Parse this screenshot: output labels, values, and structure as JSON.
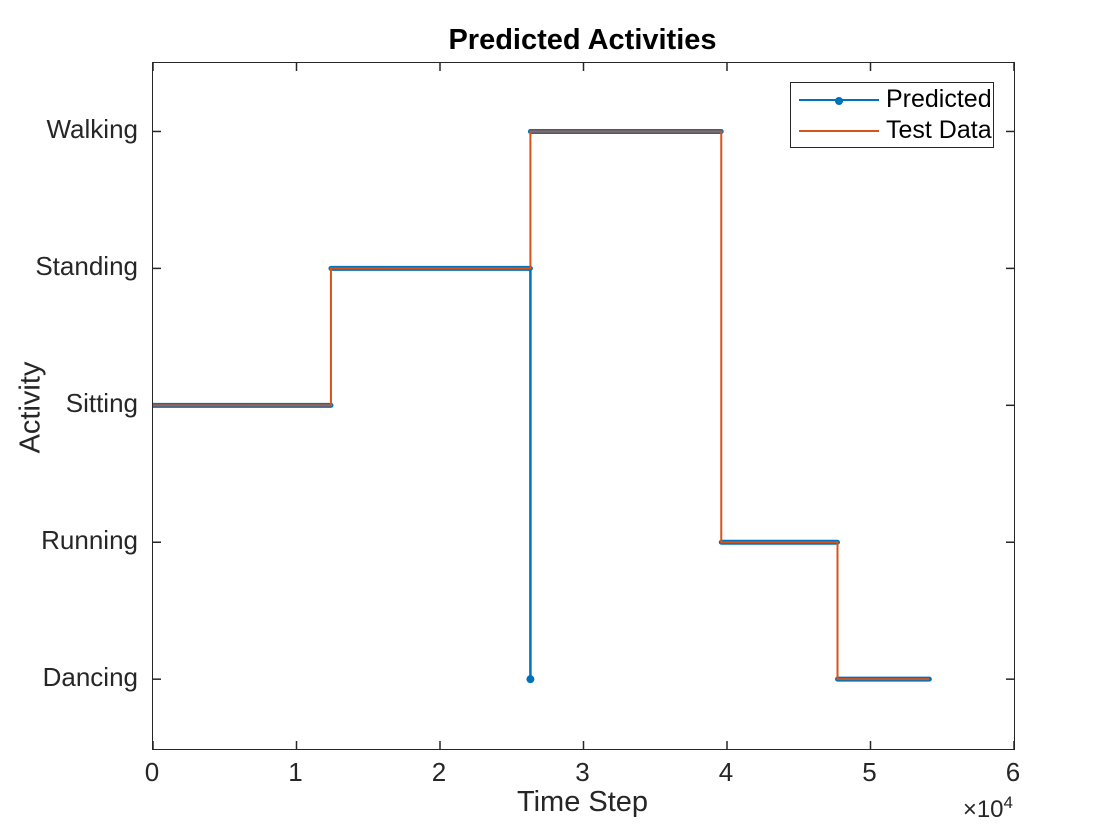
{
  "title": "Predicted Activities",
  "axes": {
    "xlabel": "Time Step",
    "ylabel": "Activity",
    "exponent_prefix": "×10",
    "exponent_power": "4"
  },
  "legend": {
    "items": [
      {
        "label": "Predicted",
        "color": "#0072BD",
        "marker": "dot"
      },
      {
        "label": "Test Data",
        "color": "#D95319",
        "marker": "none"
      }
    ]
  },
  "chart_data": {
    "type": "line",
    "subtype": "step",
    "title": "Predicted Activities",
    "xlabel": "Time Step",
    "ylabel": "Activity",
    "xlim": [
      0,
      60000
    ],
    "ylim": [
      0.49,
      5.5
    ],
    "x_ticks": [
      0,
      10000,
      20000,
      30000,
      40000,
      50000,
      60000
    ],
    "x_tick_labels": [
      "0",
      "1",
      "2",
      "3",
      "4",
      "5",
      "6"
    ],
    "x_scale_label": "×10^4",
    "grid": false,
    "box": true,
    "tick_direction": "in",
    "legend_position": "northeast",
    "categories": [
      {
        "label": "Walking",
        "level": 5
      },
      {
        "label": "Standing",
        "level": 4
      },
      {
        "label": "Sitting",
        "level": 3
      },
      {
        "label": "Running",
        "level": 2
      },
      {
        "label": "Dancing",
        "level": 1
      }
    ],
    "segments": [
      {
        "activity": "Sitting",
        "x_start": 0,
        "x_end": 12400
      },
      {
        "activity": "Standing",
        "x_start": 12400,
        "x_end": 26300
      },
      {
        "activity": "Walking",
        "x_start": 26300,
        "x_end": 39600
      },
      {
        "activity": "Running",
        "x_start": 39600,
        "x_end": 47700
      },
      {
        "activity": "Dancing",
        "x_start": 47700,
        "x_end": 54100
      }
    ],
    "series": [
      {
        "name": "Predicted",
        "color": "#0072BD",
        "marker": "dot",
        "anomaly": {
          "x": 26300,
          "activity": "Dancing"
        }
      },
      {
        "name": "Test Data",
        "color": "#D95319",
        "marker": "none"
      }
    ]
  }
}
